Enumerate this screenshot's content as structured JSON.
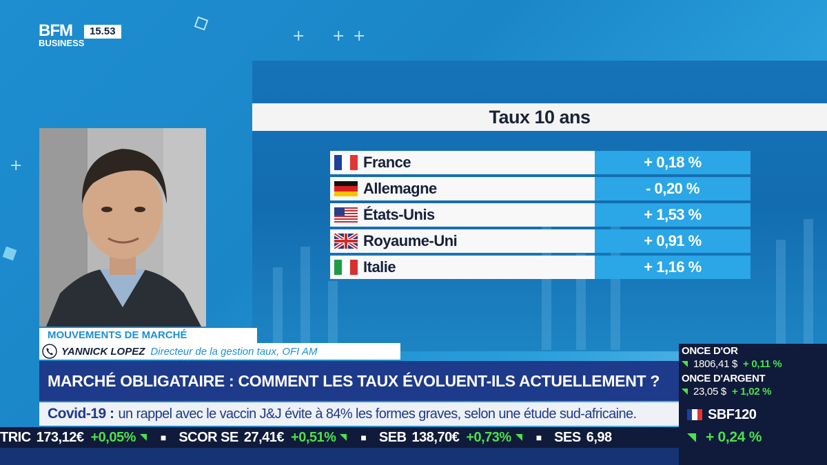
{
  "channel": {
    "logo_line1": "BFM",
    "logo_line2": "BUSINESS",
    "clock": "15.53"
  },
  "panel": {
    "title": "Taux 10 ans",
    "rows": [
      {
        "country": "France",
        "value": "+ 0,18 %",
        "flag": "france-flag-icon"
      },
      {
        "country": "Allemagne",
        "value": "- 0,20 %",
        "flag": "germany-flag-icon"
      },
      {
        "country": "États-Unis",
        "value": "+ 1,53 %",
        "flag": "usa-flag-icon"
      },
      {
        "country": "Royaume-Uni",
        "value": "+ 0,91 %",
        "flag": "uk-flag-icon"
      },
      {
        "country": "Italie",
        "value": "+ 1,16 %",
        "flag": "italy-flag-icon"
      }
    ]
  },
  "lower_third": {
    "tag": "MOUVEMENTS DE MARCHÉ",
    "speaker_name": "YANNICK LOPEZ",
    "speaker_role": "Directeur de la gestion taux, OFI AM",
    "headline": "MARCHÉ OBLIGATAIRE : COMMENT LES TAUX ÉVOLUENT-ILS ACTUELLEMENT ?"
  },
  "news": {
    "tag": "Covid-19 :",
    "text": "un rappel avec le vaccin J&J évite à 84% les formes graves, selon une étude sud-africaine."
  },
  "ticker": [
    {
      "symbol": "TRIC",
      "value": "173,12€",
      "change": "+0,05%"
    },
    {
      "symbol": "SCOR SE",
      "value": "27,41€",
      "change": "+0,51%"
    },
    {
      "symbol": "SEB",
      "value": "138,70€",
      "change": "+0,73%"
    },
    {
      "symbol": "SES",
      "value": "6,98",
      "change": ""
    }
  ],
  "market": {
    "gold_label": "ONCE D'OR",
    "gold_value": "1806,41 $",
    "gold_change": "+ 0,11 %",
    "silver_label": "ONCE D'ARGENT",
    "silver_value": "23,05 $",
    "silver_change": "+ 1,02 %",
    "index_name": "SBF120",
    "index_change": "+ 0,24 %"
  },
  "colors": {
    "accent_blue": "#1a8fd6",
    "navy": "#1e3a8a",
    "up_green": "#4ae24a"
  }
}
